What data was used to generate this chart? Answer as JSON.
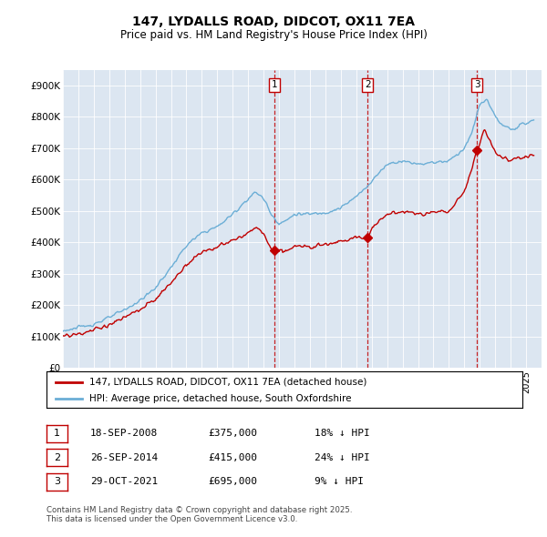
{
  "title": "147, LYDALLS ROAD, DIDCOT, OX11 7EA",
  "subtitle": "Price paid vs. HM Land Registry's House Price Index (HPI)",
  "ylim": [
    0,
    950000
  ],
  "yticks": [
    0,
    100000,
    200000,
    300000,
    400000,
    500000,
    600000,
    700000,
    800000,
    900000
  ],
  "ytick_labels": [
    "£0",
    "£100K",
    "£200K",
    "£300K",
    "£400K",
    "£500K",
    "£600K",
    "£700K",
    "£800K",
    "£900K"
  ],
  "hpi_color": "#6baed6",
  "price_color": "#c00000",
  "bg_color": "#dce6f1",
  "sales": [
    {
      "date_str": "18-SEP-2008",
      "year": 2008.72,
      "price": 375000,
      "label": "1",
      "pct": "18% ↓ HPI"
    },
    {
      "date_str": "26-SEP-2014",
      "year": 2014.73,
      "price": 415000,
      "label": "2",
      "pct": "24% ↓ HPI"
    },
    {
      "date_str": "29-OCT-2021",
      "year": 2021.83,
      "price": 695000,
      "label": "3",
      "pct": "9% ↓ HPI"
    }
  ],
  "legend_line1": "147, LYDALLS ROAD, DIDCOT, OX11 7EA (detached house)",
  "legend_line2": "HPI: Average price, detached house, South Oxfordshire",
  "footer": "Contains HM Land Registry data © Crown copyright and database right 2025.\nThis data is licensed under the Open Government Licence v3.0.",
  "xmin": 1995,
  "xmax": 2026
}
